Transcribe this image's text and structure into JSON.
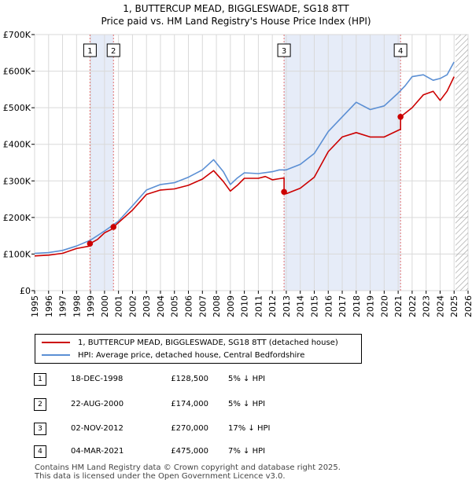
{
  "header": {
    "title": "1, BUTTERCUP MEAD, BIGGLESWADE, SG18 8TT",
    "subtitle": "Price paid vs. HM Land Registry's House Price Index (HPI)"
  },
  "chart_data": {
    "type": "line",
    "title": "1, BUTTERCUP MEAD, BIGGLESWADE, SG18 8TT",
    "subtitle": "Price paid vs. HM Land Registry's House Price Index (HPI)",
    "xlabel": "",
    "ylabel": "",
    "xlim": [
      1995,
      2026
    ],
    "ylim": [
      0,
      700000
    ],
    "grid": true,
    "x_ticks": [
      "1995",
      "1996",
      "1997",
      "1998",
      "1999",
      "2000",
      "2001",
      "2002",
      "2003",
      "2004",
      "2005",
      "2006",
      "2007",
      "2008",
      "2009",
      "2010",
      "2011",
      "2012",
      "2013",
      "2014",
      "2015",
      "2016",
      "2017",
      "2018",
      "2019",
      "2020",
      "2021",
      "2022",
      "2023",
      "2024",
      "2025",
      "2026"
    ],
    "y_ticks": [
      {
        "value": 0,
        "label": "£0"
      },
      {
        "value": 100000,
        "label": "£100K"
      },
      {
        "value": 200000,
        "label": "£200K"
      },
      {
        "value": 300000,
        "label": "£300K"
      },
      {
        "value": 400000,
        "label": "£400K"
      },
      {
        "value": 500000,
        "label": "£500K"
      },
      {
        "value": 600000,
        "label": "£600K"
      },
      {
        "value": 700000,
        "label": "£700K"
      }
    ],
    "shaded_periods": [
      [
        1998.96,
        2000.64
      ],
      [
        2012.84,
        2021.17
      ]
    ],
    "future_hatch_from": 2025.1,
    "series": [
      {
        "name": "1, BUTTERCUP MEAD, BIGGLESWADE, SG18 8TT (detached house)",
        "color": "#cc0000",
        "x": [
          1995.0,
          1996.0,
          1997.0,
          1998.0,
          1998.96,
          1998.96,
          1999.5,
          2000.0,
          2000.64,
          2000.64,
          2001.0,
          2002.0,
          2003.0,
          2004.0,
          2005.0,
          2006.0,
          2007.0,
          2007.8,
          2008.5,
          2009.0,
          2009.5,
          2010.0,
          2011.0,
          2011.5,
          2012.0,
          2012.5,
          2012.84,
          2012.84,
          2013.0,
          2014.0,
          2015.0,
          2016.0,
          2017.0,
          2018.0,
          2019.0,
          2020.0,
          2021.1,
          2021.17,
          2021.17,
          2022.0,
          2022.8,
          2023.5,
          2024.0,
          2024.5,
          2025.0
        ],
        "values": [
          95000,
          97000,
          102000,
          115000,
          122000,
          128500,
          140000,
          158000,
          170000,
          174000,
          186000,
          220000,
          263000,
          275000,
          278000,
          288000,
          305000,
          328000,
          298000,
          272000,
          288000,
          307000,
          307000,
          312000,
          303000,
          306000,
          308000,
          270000,
          265000,
          280000,
          310000,
          380000,
          420000,
          432000,
          420000,
          420000,
          440000,
          440000,
          475000,
          500000,
          535000,
          545000,
          520000,
          545000,
          585000
        ]
      },
      {
        "name": "HPI: Average price, detached house, Central Bedfordshire",
        "color": "#5b8fd4",
        "x": [
          1995.0,
          1996.0,
          1997.0,
          1998.0,
          1999.0,
          2000.0,
          2001.0,
          2002.0,
          2003.0,
          2004.0,
          2005.0,
          2006.0,
          2007.0,
          2007.8,
          2008.5,
          2009.0,
          2009.5,
          2010.0,
          2011.0,
          2012.0,
          2012.5,
          2013.0,
          2014.0,
          2015.0,
          2016.0,
          2017.0,
          2018.0,
          2019.0,
          2020.0,
          2021.0,
          2021.5,
          2022.0,
          2022.8,
          2023.5,
          2024.0,
          2024.5,
          2025.0
        ],
        "values": [
          102000,
          104000,
          110000,
          122000,
          138000,
          163000,
          190000,
          232000,
          275000,
          290000,
          295000,
          310000,
          330000,
          358000,
          325000,
          290000,
          308000,
          322000,
          320000,
          325000,
          330000,
          330000,
          345000,
          375000,
          435000,
          475000,
          515000,
          495000,
          505000,
          540000,
          560000,
          585000,
          590000,
          575000,
          580000,
          590000,
          625000
        ]
      }
    ],
    "markers": [
      {
        "label": "1",
        "x": 1998.96,
        "value": 128500
      },
      {
        "label": "2",
        "x": 2000.64,
        "value": 174000
      },
      {
        "label": "3",
        "x": 2012.84,
        "value": 270000
      },
      {
        "label": "4",
        "x": 2021.17,
        "value": 475000
      }
    ]
  },
  "legend": [
    {
      "label": "1, BUTTERCUP MEAD, BIGGLESWADE, SG18 8TT (detached house)",
      "color": "#cc0000"
    },
    {
      "label": "HPI: Average price, detached house, Central Bedfordshire",
      "color": "#5b8fd4"
    }
  ],
  "transactions": [
    {
      "num": "1",
      "date": "18-DEC-1998",
      "price": "£128,500",
      "hpi": "5% ↓ HPI"
    },
    {
      "num": "2",
      "date": "22-AUG-2000",
      "price": "£174,000",
      "hpi": "5% ↓ HPI"
    },
    {
      "num": "3",
      "date": "02-NOV-2012",
      "price": "£270,000",
      "hpi": "17% ↓ HPI"
    },
    {
      "num": "4",
      "date": "04-MAR-2021",
      "price": "£475,000",
      "hpi": "7% ↓ HPI"
    }
  ],
  "footer": {
    "line1": "Contains HM Land Registry data © Crown copyright and database right 2025.",
    "line2": "This data is licensed under the Open Government Licence v3.0."
  }
}
